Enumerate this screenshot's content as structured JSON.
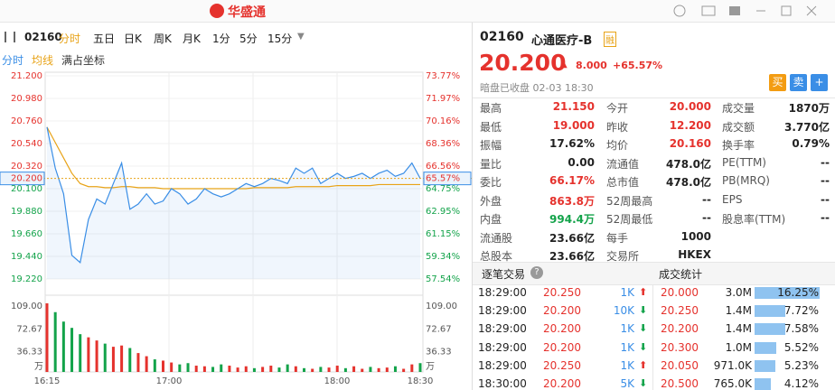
{
  "topbar": {
    "logo": "华盛通"
  },
  "toolbar": {
    "code": "02160",
    "tabs": [
      "分时",
      "五日",
      "日K",
      "周K",
      "月K",
      "1分",
      "5分",
      "15分"
    ]
  },
  "subbar": [
    "分时",
    "均线",
    "满占坐标"
  ],
  "intraday": {
    "type": "line",
    "x_labels": [
      "16:15",
      "17:00",
      "18:00",
      "18:30"
    ],
    "ylim": [
      19.22,
      21.2
    ],
    "yticks": [
      {
        "value": 21.2,
        "label": "21.200"
      },
      {
        "value": 20.98,
        "label": "20.980"
      },
      {
        "value": 20.76,
        "label": "20.760"
      },
      {
        "value": 20.54,
        "label": "20.540"
      },
      {
        "value": 20.32,
        "label": "20.320"
      },
      {
        "value": 20.1,
        "label": "20.100"
      },
      {
        "value": 19.88,
        "label": "19.880"
      },
      {
        "value": 19.66,
        "label": "19.660"
      },
      {
        "value": 19.44,
        "label": "19.440"
      },
      {
        "value": 19.22,
        "label": "19.220"
      }
    ],
    "y2lim": [
      57.54,
      73.77
    ],
    "y2ticks": [
      {
        "value": 73.77,
        "label": "73.77%"
      },
      {
        "value": 71.97,
        "label": "71.97%"
      },
      {
        "value": 70.16,
        "label": "70.16%"
      },
      {
        "value": 68.36,
        "label": "68.36%"
      },
      {
        "value": 66.56,
        "label": "66.56%"
      },
      {
        "value": 64.75,
        "label": "64.75%"
      },
      {
        "value": 62.95,
        "label": "62.95%"
      },
      {
        "value": 61.15,
        "label": "61.15%"
      },
      {
        "value": 59.34,
        "label": "59.34%"
      },
      {
        "value": 57.54,
        "label": "57.54%"
      }
    ],
    "last": {
      "value": 20.2,
      "label": "20.200",
      "pct": 65.57,
      "pct_label": "65.57%"
    },
    "price_color": "#3a8ee6",
    "average_color": "#e8a317",
    "price": [
      20.7,
      20.3,
      20.05,
      19.45,
      19.38,
      19.8,
      20.0,
      19.95,
      20.15,
      20.35,
      19.9,
      19.95,
      20.05,
      19.95,
      19.98,
      20.1,
      20.05,
      19.95,
      20.0,
      20.1,
      20.05,
      20.02,
      20.05,
      20.1,
      20.15,
      20.12,
      20.15,
      20.2,
      20.18,
      20.15,
      20.3,
      20.25,
      20.3,
      20.15,
      20.2,
      20.25,
      20.2,
      20.22,
      20.25,
      20.2,
      20.25,
      20.28,
      20.22,
      20.25,
      20.35,
      20.2
    ],
    "average": [
      20.7,
      20.55,
      20.4,
      20.25,
      20.15,
      20.12,
      20.12,
      20.11,
      20.11,
      20.12,
      20.12,
      20.11,
      20.11,
      20.11,
      20.1,
      20.1,
      20.1,
      20.1,
      20.1,
      20.1,
      20.1,
      20.1,
      20.1,
      20.1,
      20.1,
      20.11,
      20.11,
      20.11,
      20.11,
      20.11,
      20.12,
      20.12,
      20.12,
      20.12,
      20.12,
      20.13,
      20.13,
      20.13,
      20.13,
      20.13,
      20.14,
      20.14,
      20.14,
      20.14,
      20.14,
      20.14
    ],
    "volume": {
      "ylim": [
        0,
        109
      ],
      "yticks": [
        {
          "value": 109,
          "label": "109.00"
        },
        72.67,
        36.33
      ],
      "unit": "万",
      "values": [
        109,
        95,
        80,
        70,
        60,
        55,
        50,
        45,
        40,
        42,
        38,
        30,
        25,
        20,
        18,
        15,
        12,
        14,
        10,
        9,
        8,
        12,
        10,
        7,
        9,
        6,
        8,
        10,
        7,
        12,
        9,
        6,
        5,
        8,
        7,
        10,
        6,
        9,
        5,
        8,
        6,
        7,
        9,
        5,
        12,
        14
      ]
    }
  },
  "quote": {
    "code": "02160",
    "name": "心通医疗-B",
    "badge": "融",
    "price": "20.200",
    "arrow": "▲",
    "change": "8.000",
    "change_pct": "+65.57%",
    "status": "暗盘已收盘 02-03 18:30",
    "buttons": [
      "买",
      "卖",
      "+"
    ]
  },
  "stats": [
    [
      [
        "最高",
        "21.150"
      ],
      [
        "今开",
        "20.000"
      ],
      [
        "成交量",
        "1870万"
      ]
    ],
    [
      [
        "最低",
        "19.000"
      ],
      [
        "昨收",
        "12.200"
      ],
      [
        "成交额",
        "3.770亿"
      ]
    ],
    [
      [
        "振幅",
        "17.62%"
      ],
      [
        "均价",
        "20.160"
      ],
      [
        "换手率",
        "0.79%"
      ]
    ],
    [
      [
        "量比",
        "0.00"
      ],
      [
        "流通值",
        "478.0亿"
      ],
      [
        "PE(TTM)",
        "--"
      ]
    ],
    [
      [
        "委比",
        "66.17%"
      ],
      [
        "总市值",
        "478.0亿"
      ],
      [
        "PB(MRQ)",
        "--"
      ]
    ],
    [
      [
        "外盘",
        "863.8万"
      ],
      [
        "52周最高",
        "--"
      ],
      [
        "EPS",
        "--"
      ]
    ],
    [
      [
        "内盘",
        "994.4万"
      ],
      [
        "52周最低",
        "--"
      ],
      [
        "股息率(TTM)",
        "--"
      ]
    ],
    [
      [
        "流通股",
        "23.66亿"
      ],
      [
        "每手",
        "1000"
      ]
    ],
    [
      [
        "总股本",
        "23.66亿"
      ],
      [
        "交易所",
        "HKEX"
      ]
    ]
  ],
  "trades": {
    "tab": "逐笔交易",
    "help": "?",
    "rows": [
      [
        "18:29:00",
        "20.250",
        "1K"
      ],
      [
        "18:29:00",
        "20.200",
        "10K"
      ],
      [
        "18:29:00",
        "20.200",
        "1K"
      ],
      [
        "18:29:00",
        "20.200",
        "1K"
      ],
      [
        "18:29:00",
        "20.250",
        "1K"
      ],
      [
        "18:30:00",
        "20.200",
        "5K"
      ]
    ],
    "directions": [
      "up",
      "down",
      "down",
      "down",
      "up",
      "down"
    ]
  },
  "volume_stats": {
    "tab": "成交统计",
    "rows": [
      [
        "20.000",
        "3.0M"
      ],
      [
        "20.250",
        "1.4M"
      ],
      [
        "20.200",
        "1.4M"
      ],
      [
        "20.300",
        "1.0M"
      ],
      [
        "20.050",
        "971.0K"
      ],
      [
        "20.500",
        "765.0K"
      ]
    ],
    "share": [
      16.25,
      7.72,
      7.58,
      5.52,
      5.23,
      4.12
    ],
    "share_labels": [
      "16.25%",
      "7.72%",
      "7.58%",
      "5.52%",
      "5.23%",
      "4.12%"
    ]
  }
}
